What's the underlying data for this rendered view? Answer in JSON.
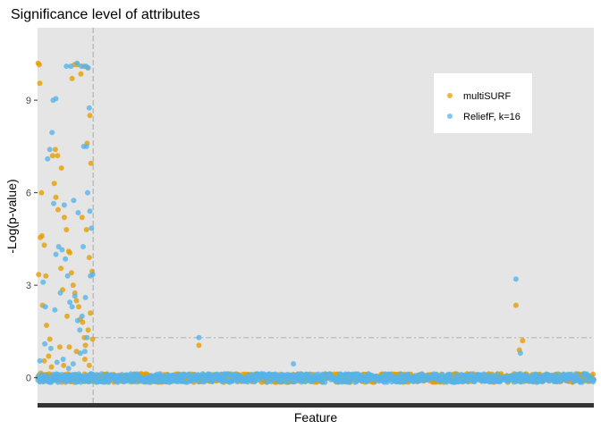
{
  "chart_data": {
    "type": "scatter",
    "title": "Significance level of attributes",
    "xlabel": "Feature",
    "ylabel": "-Log(p-value)",
    "x_ticks_shown": false,
    "xlim": [
      0,
      1000
    ],
    "ylim": [
      -0.85,
      11.35
    ],
    "y_ticks": [
      0,
      3,
      6,
      9
    ],
    "grid": false,
    "legend_position": "top-right",
    "background_color": "#e5e5e5",
    "threshold_lines": [
      {
        "orientation": "horizontal",
        "value": 1.3
      },
      {
        "orientation": "vertical",
        "value": 100
      }
    ],
    "series": [
      {
        "name": "multiSURF",
        "color": "#E69F00",
        "strong_points": [
          [
            1,
            10.2
          ],
          [
            3,
            10.15
          ],
          [
            4,
            9.55
          ],
          [
            7,
            6.0
          ],
          [
            5,
            4.55
          ],
          [
            8,
            4.6
          ],
          [
            12,
            4.3
          ],
          [
            15,
            3.3
          ],
          [
            2,
            3.35
          ],
          [
            9,
            2.35
          ],
          [
            16,
            1.7
          ],
          [
            22,
            1.25
          ],
          [
            27,
            7.2
          ],
          [
            32,
            7.4
          ],
          [
            36,
            7.2
          ],
          [
            30,
            6.3
          ],
          [
            33,
            5.85
          ],
          [
            37,
            5.45
          ],
          [
            43,
            6.8
          ],
          [
            48,
            5.2
          ],
          [
            52,
            4.8
          ],
          [
            56,
            4.1
          ],
          [
            58,
            4.05
          ],
          [
            61,
            3.4
          ],
          [
            64,
            3.0
          ],
          [
            67,
            2.75
          ],
          [
            70,
            2.5
          ],
          [
            74,
            2.3
          ],
          [
            77,
            1.9
          ],
          [
            81,
            1.8
          ],
          [
            84,
            1.3
          ],
          [
            86,
            1.05
          ],
          [
            62,
            9.7
          ],
          [
            66,
            10.15
          ],
          [
            72,
            10.15
          ],
          [
            78,
            9.85
          ],
          [
            90,
            10.05
          ],
          [
            83,
            10.1
          ],
          [
            94,
            8.5
          ],
          [
            89,
            7.6
          ],
          [
            96,
            6.95
          ],
          [
            88,
            4.8
          ],
          [
            93,
            3.9
          ],
          [
            98,
            3.45
          ],
          [
            95,
            2.1
          ],
          [
            91,
            1.55
          ],
          [
            99,
            1.25
          ],
          [
            57,
            1.0
          ],
          [
            70,
            0.85
          ],
          [
            85,
            0.6
          ],
          [
            93,
            0.4
          ],
          [
            12,
            0.55
          ],
          [
            20,
            0.7
          ],
          [
            40,
            1.0
          ],
          [
            47,
            0.4
          ],
          [
            25,
            0.35
          ],
          [
            6,
            0.15
          ],
          [
            45,
            2.85
          ],
          [
            53,
            2.0
          ],
          [
            80,
            5.2
          ],
          [
            42,
            3.55
          ]
        ],
        "notable_points": [
          [
            290,
            1.05
          ],
          [
            860,
            2.35
          ],
          [
            872,
            1.2
          ],
          [
            866,
            0.9
          ]
        ]
      },
      {
        "name": "ReliefF, k=16",
        "color": "#56B4E9",
        "strong_points": [
          [
            10,
            3.1
          ],
          [
            14,
            2.3
          ],
          [
            18,
            7.1
          ],
          [
            22,
            7.4
          ],
          [
            26,
            7.95
          ],
          [
            29,
            5.65
          ],
          [
            33,
            4.0
          ],
          [
            38,
            4.25
          ],
          [
            44,
            4.15
          ],
          [
            48,
            5.6
          ],
          [
            54,
            3.3
          ],
          [
            58,
            2.45
          ],
          [
            62,
            2.3
          ],
          [
            67,
            2.65
          ],
          [
            72,
            1.85
          ],
          [
            76,
            1.55
          ],
          [
            80,
            2.0
          ],
          [
            28,
            9.0
          ],
          [
            33,
            9.05
          ],
          [
            52,
            10.1
          ],
          [
            60,
            10.1
          ],
          [
            71,
            10.2
          ],
          [
            79,
            10.1
          ],
          [
            87,
            10.1
          ],
          [
            91,
            10.05
          ],
          [
            93,
            8.75
          ],
          [
            88,
            7.5
          ],
          [
            83,
            7.5
          ],
          [
            90,
            6.0
          ],
          [
            94,
            5.4
          ],
          [
            97,
            4.85
          ],
          [
            99,
            3.35
          ],
          [
            95,
            3.3
          ],
          [
            89,
            1.3
          ],
          [
            85,
            0.85
          ],
          [
            77,
            0.8
          ],
          [
            64,
            0.45
          ],
          [
            56,
            0.3
          ],
          [
            46,
            0.6
          ],
          [
            35,
            0.5
          ],
          [
            24,
            0.95
          ],
          [
            13,
            1.1
          ],
          [
            4,
            0.55
          ],
          [
            8,
            0.1
          ],
          [
            31,
            2.2
          ],
          [
            41,
            2.75
          ],
          [
            50,
            3.85
          ],
          [
            65,
            5.75
          ],
          [
            73,
            5.35
          ],
          [
            82,
            4.25
          ],
          [
            86,
            2.6
          ]
        ],
        "notable_points": [
          [
            290,
            1.3
          ],
          [
            460,
            0.45
          ],
          [
            860,
            3.2
          ],
          [
            868,
            0.8
          ]
        ]
      }
    ]
  }
}
